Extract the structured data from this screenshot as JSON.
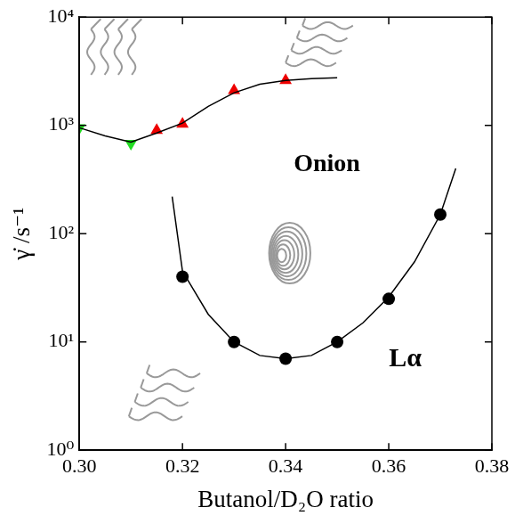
{
  "chart_data": {
    "type": "scatter",
    "x_label": "Butanol/D₂O ratio",
    "y_label": "γ̇ /s⁻¹",
    "log": "y",
    "grid": false,
    "xlim": [
      0.3,
      0.38
    ],
    "xticks": [
      {
        "value": 0.3,
        "label": "0.30"
      },
      0.32,
      0.34,
      0.36,
      0.38
    ],
    "ylim": [
      1,
      10000
    ],
    "yticks": [
      {
        "value": 1,
        "label": "10⁰"
      },
      {
        "value": 10,
        "label": "10¹"
      },
      {
        "value": 100,
        "label": "10²"
      },
      {
        "value": 1000,
        "label": "10³"
      },
      {
        "value": 10000,
        "label": "10⁴"
      }
    ],
    "annotations": [
      "Onion",
      "Lα"
    ],
    "series": [
      {
        "type": "line",
        "color": "#000000",
        "marker": "none",
        "line_style": "solid",
        "x": [
          0.3,
          0.305,
          0.31,
          0.315,
          0.32,
          0.325,
          0.33,
          0.335,
          0.34,
          0.345,
          0.35
        ],
        "values": [
          950,
          800,
          700,
          850,
          1050,
          1500,
          2000,
          2400,
          2600,
          2700,
          2750
        ]
      },
      {
        "type": "line",
        "color": "#000000",
        "marker": "none",
        "line_style": "solid",
        "x": [
          0.318,
          0.32,
          0.325,
          0.33,
          0.335,
          0.34,
          0.345,
          0.35,
          0.355,
          0.36,
          0.365,
          0.37,
          0.373
        ],
        "values": [
          220,
          45,
          18,
          10,
          7.5,
          7,
          7.5,
          10,
          15,
          26,
          55,
          150,
          400
        ]
      },
      {
        "type": "scatter",
        "color": "#22dd22",
        "marker": "triangle_down",
        "line_style": "none",
        "x": [
          0.3,
          0.31
        ],
        "values": [
          950,
          680
        ]
      },
      {
        "type": "scatter",
        "color": "#ee0000",
        "marker": "triangle_up",
        "line_style": "none",
        "x": [
          0.315,
          0.32,
          0.33,
          0.34
        ],
        "values": [
          900,
          1030,
          2100,
          2600
        ]
      },
      {
        "type": "scatter",
        "color": "#000000",
        "marker": "circle",
        "line_style": "none",
        "x": [
          0.32,
          0.33,
          0.34,
          0.35,
          0.36,
          0.37
        ],
        "values": [
          40,
          10,
          7,
          10,
          25,
          150
        ]
      }
    ]
  }
}
